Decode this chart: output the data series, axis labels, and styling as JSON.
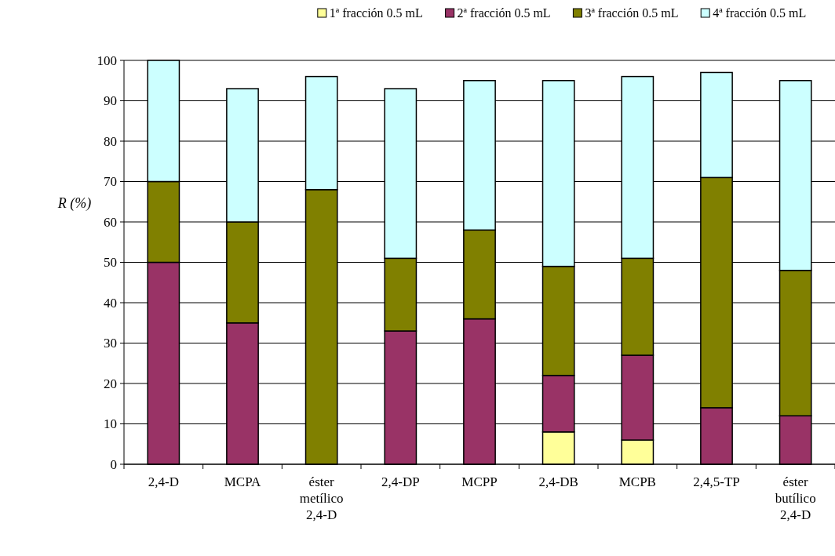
{
  "chart_data": {
    "type": "bar",
    "stacked": true,
    "ylabel": "R (%)",
    "categories": [
      "2,4-D",
      "MCPA",
      "éster metílico 2,4-D",
      "2,4-DP",
      "MCPP",
      "2,4-DB",
      "MCPB",
      "2,4,5-TP",
      "éster butílico 2,4-D"
    ],
    "series": [
      {
        "name": "1ª fracción 0.5 mL",
        "color": "#ffff99",
        "values": [
          0,
          0,
          0,
          0,
          0,
          8,
          6,
          0,
          0
        ]
      },
      {
        "name": "2ª fracción 0.5 mL",
        "color": "#993366",
        "values": [
          50,
          35,
          0,
          33,
          36,
          14,
          21,
          14,
          12
        ]
      },
      {
        "name": "3ª fracción 0.5 mL",
        "color": "#808000",
        "values": [
          20,
          25,
          68,
          18,
          22,
          27,
          24,
          57,
          36
        ]
      },
      {
        "name": "4ª fracción 0.5 mL",
        "color": "#ccffff",
        "values": [
          30,
          33,
          28,
          42,
          37,
          46,
          45,
          26,
          47
        ]
      }
    ],
    "ylim": [
      0,
      100
    ],
    "yticks": [
      0,
      10,
      20,
      30,
      40,
      50,
      60,
      70,
      80,
      90,
      100
    ],
    "grid": "y",
    "legend": "top right"
  }
}
